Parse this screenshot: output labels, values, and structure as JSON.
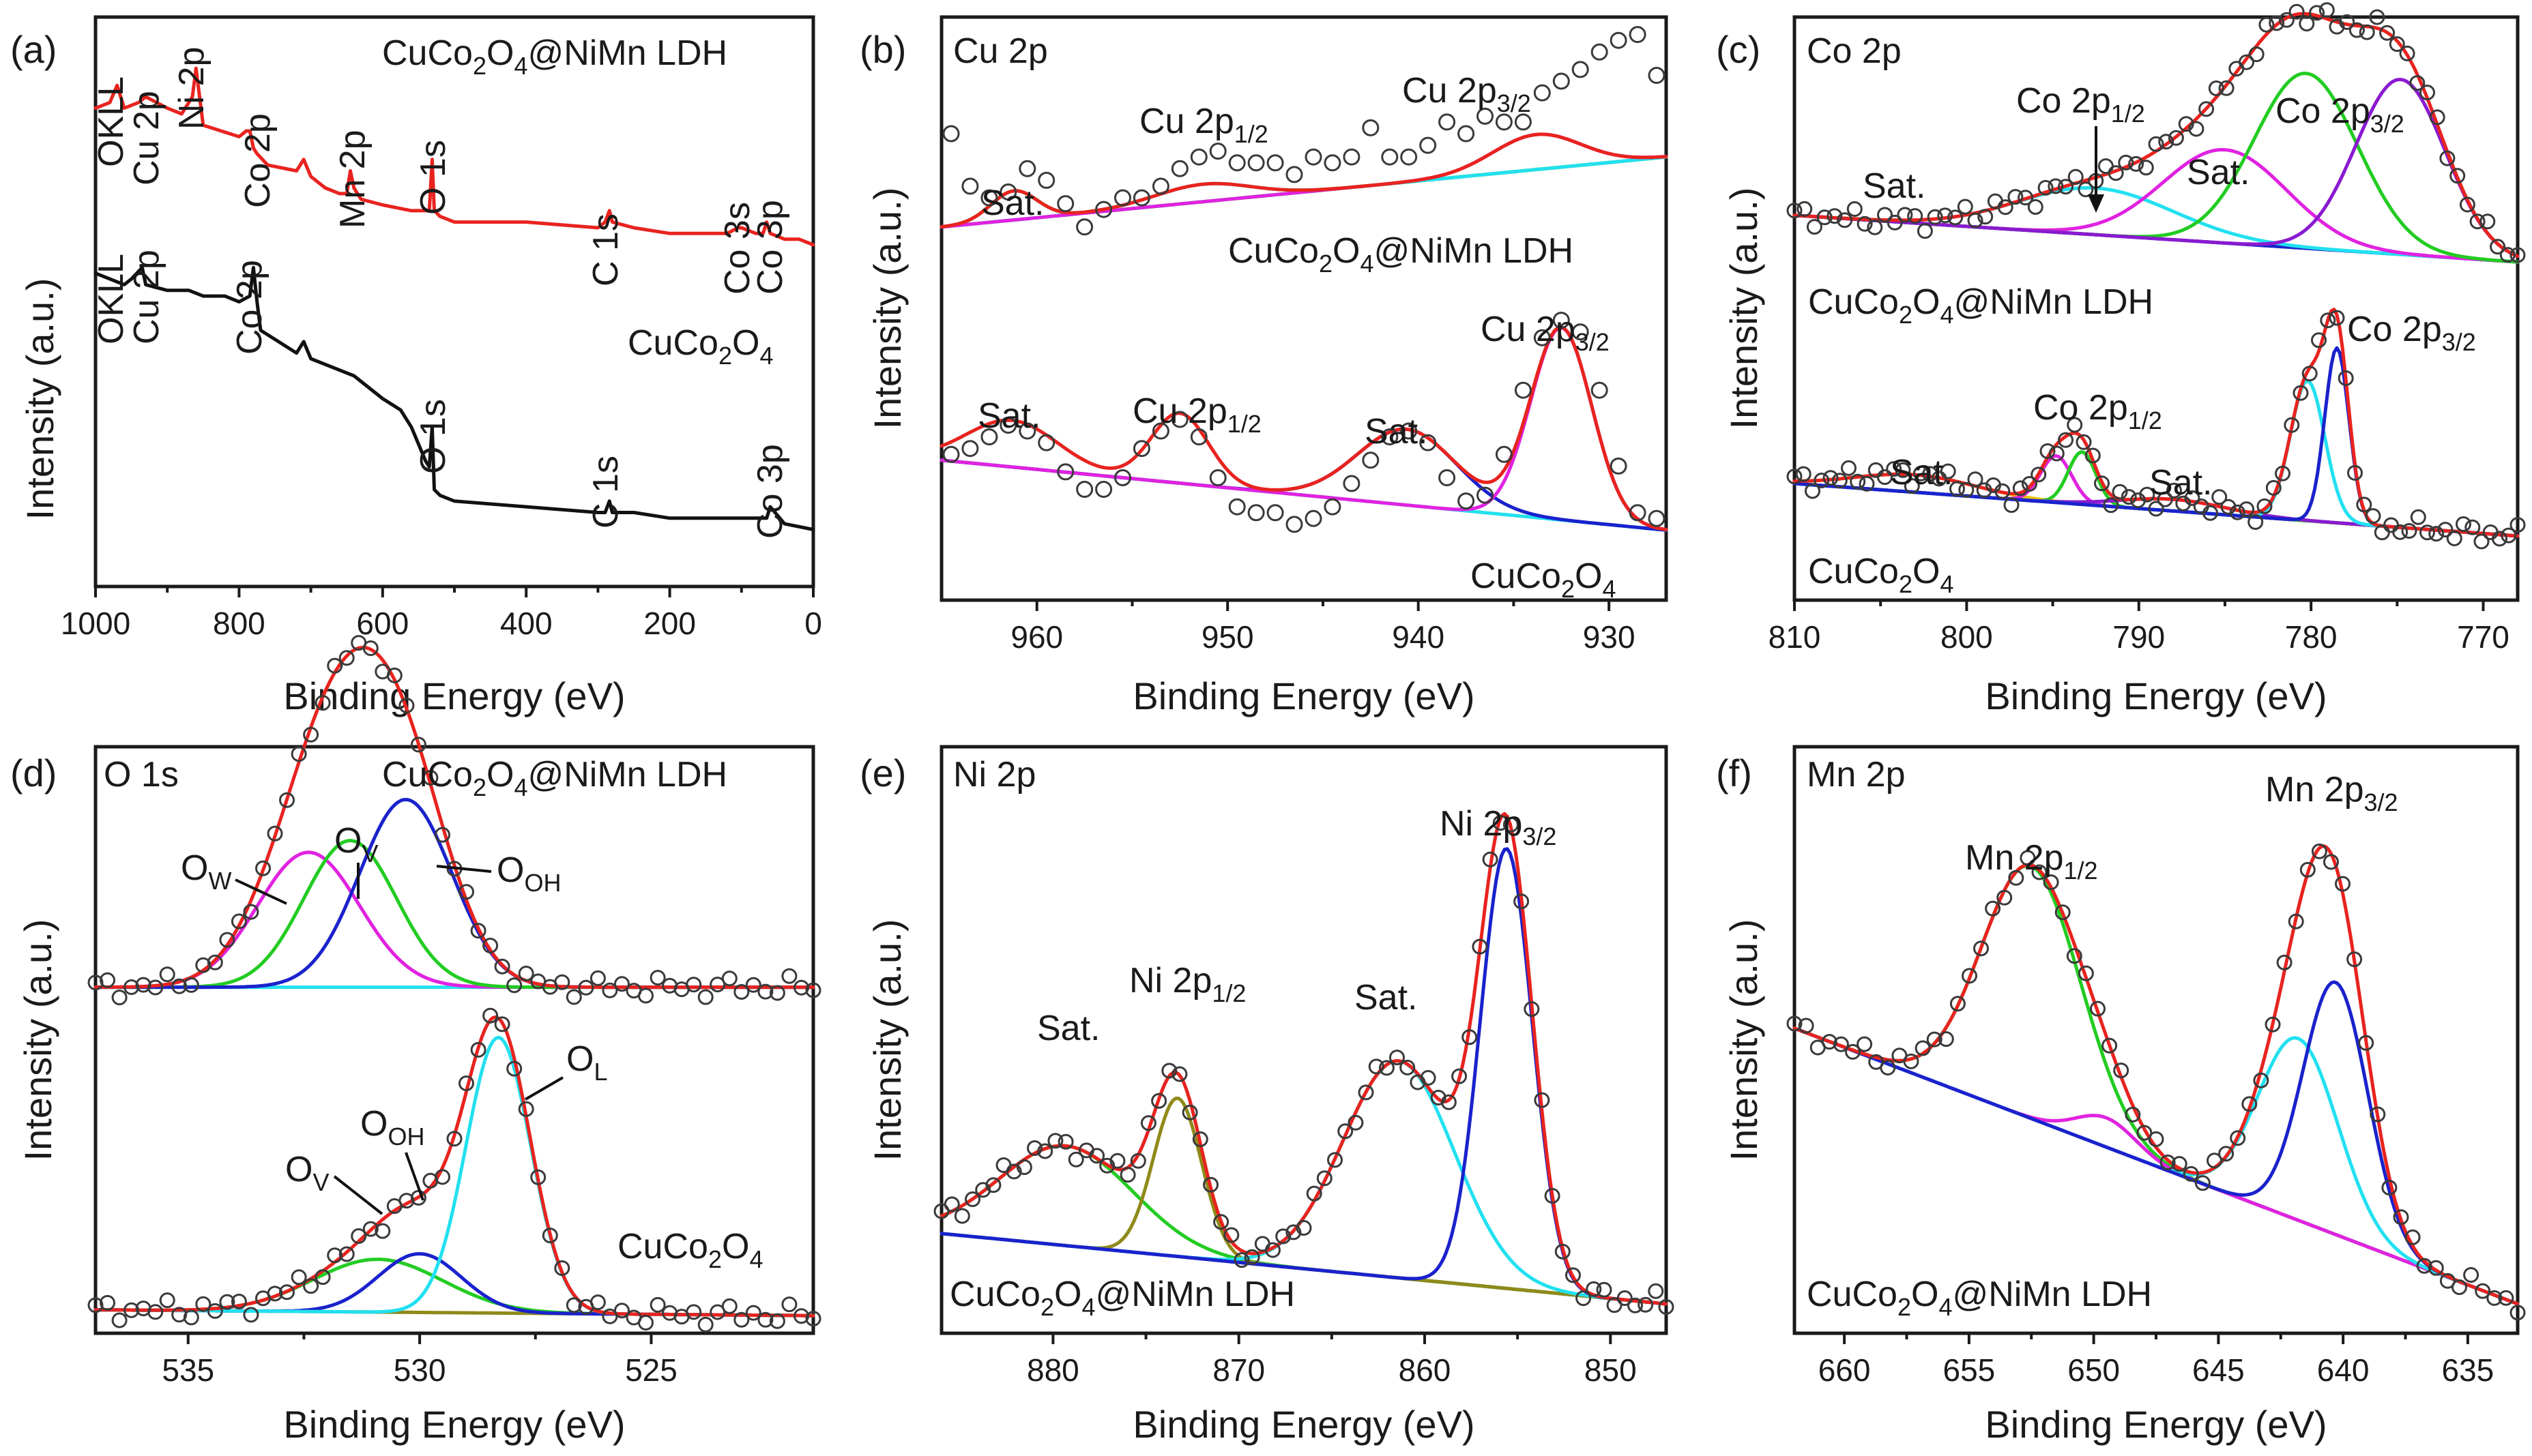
{
  "colors": {
    "red": "#e8231f",
    "black": "#111111",
    "green": "#22cc22",
    "cyan": "#22e0f0",
    "blue": "#1a22cc",
    "magenta": "#e022e0",
    "purple": "#8a1ad0",
    "olive": "#8f8a1a",
    "yellow": "#e6c800",
    "navy": "#1a1a8a"
  },
  "chart_data": [
    {
      "type": "line",
      "panel": "(a)",
      "title": "",
      "xlabel": "Binding Energy (eV)",
      "ylabel": "Intensity (a.u.)",
      "xlim": [
        1000,
        0
      ],
      "x_reversed": true,
      "ylim": [
        0,
        1
      ],
      "xticks": [
        1000,
        800,
        600,
        400,
        200,
        0
      ],
      "series": [
        {
          "name": "CuCo2O4@NiMn LDH",
          "color": "#e8231f",
          "x": [
            1000,
            980,
            970,
            960,
            940,
            930,
            900,
            880,
            865,
            860,
            855,
            850,
            800,
            790,
            785,
            780,
            775,
            760,
            720,
            710,
            700,
            680,
            660,
            650,
            645,
            640,
            630,
            600,
            560,
            535,
            531,
            528,
            520,
            500,
            400,
            300,
            290,
            284,
            280,
            250,
            200,
            150,
            120,
            105,
            100,
            80,
            70,
            65,
            60,
            40,
            20,
            0
          ],
          "y": [
            0.84,
            0.85,
            0.88,
            0.84,
            0.85,
            0.86,
            0.84,
            0.83,
            0.86,
            0.91,
            0.86,
            0.81,
            0.79,
            0.8,
            0.8,
            0.77,
            0.76,
            0.74,
            0.73,
            0.75,
            0.72,
            0.7,
            0.69,
            0.69,
            0.73,
            0.7,
            0.68,
            0.67,
            0.66,
            0.66,
            0.75,
            0.66,
            0.65,
            0.64,
            0.64,
            0.63,
            0.64,
            0.66,
            0.64,
            0.63,
            0.62,
            0.62,
            0.62,
            0.63,
            0.63,
            0.62,
            0.62,
            0.64,
            0.62,
            0.61,
            0.61,
            0.6
          ]
        },
        {
          "name": "CuCo2O4",
          "color": "#111111",
          "x": [
            1000,
            980,
            960,
            950,
            935,
            930,
            900,
            870,
            850,
            820,
            800,
            785,
            780,
            775,
            770,
            720,
            710,
            700,
            660,
            640,
            600,
            575,
            560,
            540,
            535,
            531,
            528,
            520,
            500,
            400,
            300,
            290,
            284,
            280,
            250,
            200,
            100,
            80,
            65,
            60,
            40,
            0
          ],
          "y": [
            0.55,
            0.54,
            0.53,
            0.54,
            0.56,
            0.53,
            0.52,
            0.52,
            0.51,
            0.51,
            0.5,
            0.51,
            0.56,
            0.5,
            0.45,
            0.41,
            0.43,
            0.4,
            0.38,
            0.37,
            0.33,
            0.31,
            0.28,
            0.22,
            0.21,
            0.28,
            0.17,
            0.16,
            0.15,
            0.14,
            0.13,
            0.13,
            0.15,
            0.13,
            0.13,
            0.12,
            0.12,
            0.12,
            0.12,
            0.14,
            0.11,
            0.1
          ]
        }
      ],
      "annotations": [
        {
          "text": "OKLL",
          "x": 980,
          "y": 0.9
        },
        {
          "text": "Cu 2p",
          "x": 930,
          "y": 0.9
        },
        {
          "text": "Ni 2p",
          "x": 855,
          "y": 0.95
        },
        {
          "text": "Co 2p",
          "x": 780,
          "y": 0.84
        },
        {
          "text": "Mn 2p",
          "x": 640,
          "y": 0.76
        },
        {
          "text": "O 1s",
          "x": 531,
          "y": 0.79
        },
        {
          "text": "C 1s",
          "x": 284,
          "y": 0.68
        },
        {
          "text": "Co 3s",
          "x": 105,
          "y": 0.66
        },
        {
          "text": "Co 3p",
          "x": 65,
          "y": 0.66
        },
        {
          "text": "OKLL",
          "x": 980,
          "y": 0.58
        },
        {
          "text": "Cu 2p",
          "x": 930,
          "y": 0.58
        },
        {
          "text": "Co 2p",
          "x": 780,
          "y": 0.6
        },
        {
          "text": "O 1s",
          "x": 531,
          "y": 0.32
        },
        {
          "text": "C 1s",
          "x": 284,
          "y": 0.19
        },
        {
          "text": "Co 3p",
          "x": 65,
          "y": 0.18
        }
      ],
      "legend": {
        "top": "CuCo2O4@NiMn LDH",
        "bottom": "CuCo2O4"
      }
    },
    {
      "type": "scatter+fit",
      "panel": "(b)",
      "title": "Cu 2p",
      "xlabel": "Binding Energy (eV)",
      "ylabel": "Intensity (a.u.)",
      "xlim": [
        965,
        927
      ],
      "x_reversed": true,
      "ylim": [
        0,
        1
      ],
      "xticks": [
        960,
        950,
        940,
        930
      ],
      "upper": {
        "sample": "CuCo2O4@NiMn LDH",
        "x": [
          964.5,
          963.5,
          962.5,
          961.5,
          960.5,
          959.5,
          958.5,
          957.5,
          956.5,
          955.5,
          954.5,
          953.5,
          952.5,
          951.5,
          950.5,
          949.5,
          948.5,
          947.5,
          946.5,
          945.5,
          944.5,
          943.5,
          942.5,
          941.5,
          940.5,
          939.5,
          938.5,
          937.5,
          936.5,
          935.5,
          934.5,
          933.5,
          932.5,
          931.5,
          930.5,
          929.5,
          928.5,
          927.5
        ],
        "y": [
          0.8,
          0.71,
          0.69,
          0.7,
          0.74,
          0.72,
          0.68,
          0.64,
          0.67,
          0.69,
          0.69,
          0.71,
          0.74,
          0.76,
          0.77,
          0.75,
          0.75,
          0.75,
          0.73,
          0.76,
          0.75,
          0.76,
          0.81,
          0.76,
          0.76,
          0.78,
          0.82,
          0.8,
          0.83,
          0.82,
          0.82,
          0.87,
          0.89,
          0.91,
          0.94,
          0.96,
          0.97,
          0.9
        ],
        "fit": {
          "baseline": [
            0.64,
            0.76
          ],
          "sat_center": 961.2,
          "sat_amp": 0.05,
          "p12_center": 951.3,
          "p12_amp": 0.03,
          "p32_center": 933.8,
          "p32_amp": 0.06
        }
      },
      "lower": {
        "sample": "CuCo2O4",
        "x": [
          964.5,
          963.5,
          962.5,
          961.5,
          960.5,
          959.5,
          958.5,
          957.5,
          956.5,
          955.5,
          954.5,
          953.5,
          952.5,
          951.5,
          950.5,
          949.5,
          948.5,
          947.5,
          946.5,
          945.5,
          944.5,
          943.5,
          942.5,
          941.5,
          940.5,
          939.5,
          938.5,
          937.5,
          936.5,
          935.5,
          934.5,
          933.5,
          932.5,
          931.5,
          930.5,
          929.5,
          928.5,
          927.5
        ],
        "y": [
          0.25,
          0.26,
          0.28,
          0.3,
          0.29,
          0.27,
          0.22,
          0.19,
          0.19,
          0.21,
          0.26,
          0.29,
          0.31,
          0.28,
          0.21,
          0.16,
          0.15,
          0.15,
          0.13,
          0.14,
          0.16,
          0.2,
          0.24,
          0.28,
          0.29,
          0.27,
          0.21,
          0.17,
          0.18,
          0.25,
          0.36,
          0.45,
          0.48,
          0.46,
          0.36,
          0.23,
          0.15,
          0.14
        ],
        "fit": {
          "baseline": [
            0.24,
            0.12
          ],
          "sat1_center": 961.3,
          "sat1_amp": 0.08,
          "p12_center": 952.5,
          "p12_amp": 0.12,
          "sat2_center": 940.6,
          "sat2_amp": 0.13,
          "p32_center": 932.5,
          "p32_amp": 0.33
        }
      },
      "annotations": [
        "Sat.",
        "Cu 2p1/2",
        "Cu 2p3/2",
        "CuCo2O4@NiMn LDH",
        "Sat.",
        "Cu 2p1/2",
        "Sat.",
        "Cu 2p3/2",
        "CuCo2O4"
      ]
    },
    {
      "type": "scatter+fit",
      "panel": "(c)",
      "title": "Co 2p",
      "xlabel": "Binding Energy (eV)",
      "ylabel": "Intensity (a.u.)",
      "xlim": [
        810,
        768
      ],
      "x_reversed": true,
      "ylim": [
        0,
        1
      ],
      "xticks": [
        810,
        800,
        790,
        780,
        770
      ],
      "upper": {
        "sample": "CuCo2O4@NiMn LDH",
        "peaks": [
          {
            "name": "Co 2p1/2",
            "center": 792.5,
            "amp": 0.08
          },
          {
            "name": "Sat.",
            "center": 785.0,
            "amp": 0.16
          },
          {
            "name": "Co 2p3/2",
            "center": 780.3,
            "amp": 0.3
          },
          {
            "name": "Co 2p3/2",
            "center": 774.8,
            "amp": 0.3
          }
        ],
        "baseline": [
          0.66,
          0.58
        ]
      },
      "lower": {
        "sample": "CuCo2O4",
        "peaks": [
          {
            "name": "Sat.",
            "center": 803.0,
            "amp": 0.03
          },
          {
            "name": "Co 2p1/2",
            "center": 794.8,
            "amp": 0.08
          },
          {
            "name": "Co 2p1/2",
            "center": 793.3,
            "amp": 0.09
          },
          {
            "name": "Sat.",
            "center": 788.0,
            "amp": 0.02
          },
          {
            "name": "Co 2p3/2",
            "center": 780.2,
            "amp": 0.24
          },
          {
            "name": "Co 2p3/2",
            "center": 778.5,
            "amp": 0.3
          }
        ],
        "baseline": [
          0.2,
          0.11
        ]
      },
      "annotations": [
        "Sat.",
        "Co 2p1/2",
        "Sat.",
        "Co 2p3/2",
        "CuCo2O4@NiMn LDH",
        "Sat.",
        "Co 2p1/2",
        "Sat.",
        "Co 2p3/2",
        "CuCo2O4"
      ]
    },
    {
      "type": "scatter+fit",
      "panel": "(d)",
      "title": "O 1s",
      "xlabel": "Binding Energy (eV)",
      "ylabel": "Intensity (a.u.)",
      "xlim": [
        537,
        521.5
      ],
      "x_reversed": true,
      "ylim": [
        0,
        1
      ],
      "xticks": [
        535,
        530,
        525
      ],
      "upper": {
        "sample": "CuCo2O4@NiMn LDH",
        "peaks": [
          {
            "name": "OW",
            "center": 532.4,
            "amp": 0.23,
            "color": "#e022e0"
          },
          {
            "name": "OV",
            "center": 531.5,
            "amp": 0.25,
            "color": "#22cc22"
          },
          {
            "name": "OOH",
            "center": 530.3,
            "amp": 0.32,
            "color": "#1a22cc"
          }
        ],
        "baseline": [
          0.59,
          0.59
        ]
      },
      "lower": {
        "sample": "CuCo2O4",
        "peaks": [
          {
            "name": "OV",
            "center": 530.9,
            "amp": 0.09,
            "color": "#22cc22"
          },
          {
            "name": "OOH",
            "center": 530.0,
            "amp": 0.1,
            "color": "#1a22cc"
          },
          {
            "name": "OL",
            "center": 528.3,
            "amp": 0.47,
            "color": "#22e0f0"
          }
        ],
        "baseline": [
          0.04,
          0.03
        ]
      },
      "annotations": [
        "CuCo2O4@NiMn LDH",
        "OW",
        "OV",
        "OOH",
        "OV",
        "OOH",
        "OL",
        "CuCo2O4"
      ]
    },
    {
      "type": "scatter+fit",
      "panel": "(e)",
      "title": "Ni 2p",
      "xlabel": "Binding Energy (eV)",
      "ylabel": "Intensity (a.u.)",
      "xlim": [
        886,
        847
      ],
      "x_reversed": true,
      "ylim": [
        0,
        1
      ],
      "xticks": [
        880,
        870,
        860,
        850
      ],
      "sample": "CuCo2O4@NiMn LDH",
      "peaks": [
        {
          "name": "Sat.",
          "center": 879.3,
          "amp": 0.17,
          "color": "#22cc22"
        },
        {
          "name": "Ni 2p1/2",
          "center": 873.3,
          "amp": 0.27,
          "color": "#8f8a1a"
        },
        {
          "name": "Sat.",
          "center": 861.4,
          "amp": 0.37,
          "color": "#22e0f0"
        },
        {
          "name": "Ni 2p3/2",
          "center": 855.6,
          "amp": 0.75,
          "color": "#1a22cc"
        }
      ],
      "baseline": [
        0.17,
        0.05
      ],
      "annotations": [
        "Sat.",
        "Ni 2p1/2",
        "Sat.",
        "Ni 2p3/2",
        "CuCo2O4@NiMn LDH"
      ]
    },
    {
      "type": "scatter+fit",
      "panel": "(f)",
      "title": "Mn 2p",
      "xlabel": "Binding Energy (eV)",
      "ylabel": "Intensity (a.u.)",
      "xlim": [
        662,
        633
      ],
      "x_reversed": true,
      "ylim": [
        0,
        1
      ],
      "xticks": [
        660,
        655,
        650,
        645,
        640,
        635
      ],
      "sample": "CuCo2O4@NiMn LDH",
      "peaks": [
        {
          "name": "Mn 2p1/2",
          "center": 652.5,
          "amp": 0.43,
          "color": "#22cc22"
        },
        {
          "name": "Mn 2p1/2",
          "center": 649.5,
          "amp": 0.05,
          "color": "#e022e0"
        },
        {
          "name": "Mn 2p3/2",
          "center": 641.8,
          "amp": 0.31,
          "color": "#22e0f0"
        },
        {
          "name": "Mn 2p3/2",
          "center": 640.3,
          "amp": 0.43,
          "color": "#1a22cc"
        }
      ],
      "baseline": [
        0.52,
        0.05
      ],
      "annotations": [
        "Mn 2p1/2",
        "Mn 2p3/2",
        "CuCo2O4@NiMn LDH"
      ]
    }
  ],
  "text": {
    "a": {
      "label": "(a)",
      "ldh_base": "CuCo",
      "ldh_mid": "O",
      "ldh_end": "@NiMn LDH",
      "cco_base": "CuCo",
      "cco_mid": "O",
      "okll": "OKLL",
      "cu2p": "Cu 2p",
      "ni2p": "Ni 2p",
      "co2p": "Co 2p",
      "mn2p": "Mn 2p",
      "o1s": "O 1s",
      "c1s": "C 1s",
      "co3s": "Co 3s",
      "co3p": "Co 3p"
    },
    "b": {
      "label": "(b)",
      "title": "Cu 2p",
      "sat": "Sat.",
      "cu2p": "Cu 2p",
      "half": "1/2",
      "threehalf": "3/2",
      "ldh_base": "CuCo",
      "ldh_mid": "O",
      "ldh_end": "@NiMn LDH",
      "cco_base": "CuCo",
      "cco_mid": "O"
    },
    "c": {
      "label": "(c)",
      "title": "Co 2p",
      "sat": "Sat.",
      "co2p": "Co 2p",
      "half": "1/2",
      "threehalf": "3/2",
      "ldh_base": "CuCo",
      "ldh_mid": "O",
      "ldh_end": "@NiMn LDH",
      "cco_base": "CuCo",
      "cco_mid": "O"
    },
    "d": {
      "label": "(d)",
      "title": "O 1s",
      "O": "O",
      "W": "W",
      "V": "V",
      "OH": "OH",
      "L": "L",
      "ldh_base": "CuCo",
      "ldh_mid": "O",
      "ldh_end": "@NiMn LDH",
      "cco_base": "CuCo",
      "cco_mid": "O"
    },
    "e": {
      "label": "(e)",
      "title": "Ni 2p",
      "sat": "Sat.",
      "ni2p": "Ni 2p",
      "half": "1/2",
      "threehalf": "3/2",
      "ldh_base": "CuCo",
      "ldh_mid": "O",
      "ldh_end": "@NiMn LDH"
    },
    "f": {
      "label": "(f)",
      "title": "Mn 2p",
      "mn2p": "Mn 2p",
      "half": "1/2",
      "threehalf": "3/2",
      "ldh_base": "CuCo",
      "ldh_mid": "O",
      "ldh_end": "@NiMn LDH"
    },
    "sub2": "2",
    "sub4": "4",
    "xlabel": "Binding Energy (eV)",
    "ylabel": "Intensity (a.u.)"
  }
}
